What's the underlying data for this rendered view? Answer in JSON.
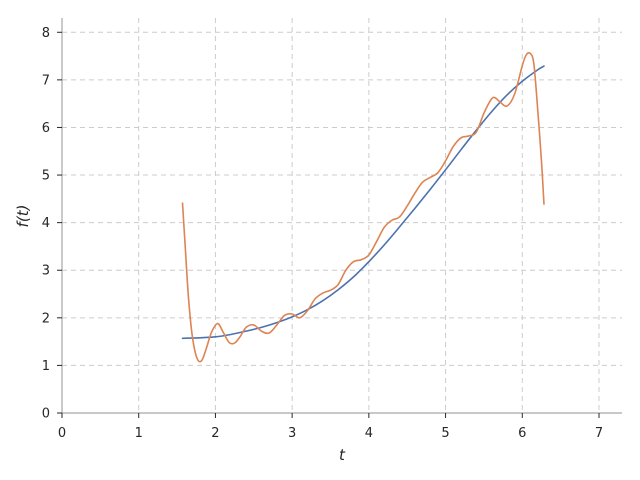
{
  "chart_data": {
    "type": "line",
    "title": "",
    "xlabel": "t",
    "ylabel": "f(t)",
    "xlim": [
      0,
      7.3
    ],
    "ylim": [
      0,
      8.3
    ],
    "x_ticks": [
      0,
      1,
      2,
      3,
      4,
      5,
      6,
      7
    ],
    "y_ticks": [
      0,
      1,
      2,
      3,
      4,
      5,
      6,
      7,
      8
    ],
    "grid": true,
    "grid_style": "dashed",
    "colors": {
      "smooth": "#4c72b0",
      "approx": "#dd8452",
      "axis": "#a6a6a6",
      "grid": "#cccccc"
    },
    "series": [
      {
        "x": [
          1.571,
          1.8,
          2.0,
          2.2,
          2.4,
          2.6,
          2.8,
          3.0,
          3.2,
          3.4,
          3.6,
          3.8,
          4.0,
          4.2,
          4.4,
          4.6,
          4.8,
          5.0,
          5.2,
          5.4,
          5.6,
          5.8,
          6.0,
          6.2,
          6.283
        ],
        "values": [
          1.57,
          1.58,
          1.6,
          1.65,
          1.72,
          1.8,
          1.9,
          2.02,
          2.17,
          2.36,
          2.59,
          2.86,
          3.18,
          3.53,
          3.91,
          4.3,
          4.7,
          5.11,
          5.53,
          5.94,
          6.33,
          6.68,
          6.97,
          7.21,
          7.29
        ]
      },
      {
        "x": [
          1.571,
          1.61,
          1.65,
          1.7,
          1.76,
          1.82,
          1.88,
          1.95,
          2.03,
          2.1,
          2.18,
          2.25,
          2.32,
          2.4,
          2.5,
          2.6,
          2.7,
          2.8,
          2.9,
          3.0,
          3.1,
          3.2,
          3.3,
          3.4,
          3.5,
          3.6,
          3.7,
          3.8,
          3.9,
          4.0,
          4.1,
          4.2,
          4.3,
          4.4,
          4.5,
          4.6,
          4.7,
          4.8,
          4.9,
          5.0,
          5.1,
          5.2,
          5.3,
          5.4,
          5.5,
          5.6,
          5.65,
          5.7,
          5.8,
          5.9,
          6.0,
          6.05,
          6.1,
          6.15,
          6.2,
          6.25,
          6.283
        ],
        "values": [
          4.41,
          3.4,
          2.4,
          1.6,
          1.15,
          1.1,
          1.35,
          1.7,
          1.88,
          1.7,
          1.48,
          1.47,
          1.6,
          1.8,
          1.85,
          1.72,
          1.68,
          1.85,
          2.05,
          2.08,
          2.0,
          2.15,
          2.4,
          2.52,
          2.58,
          2.7,
          3.0,
          3.18,
          3.22,
          3.32,
          3.6,
          3.9,
          4.05,
          4.12,
          4.35,
          4.62,
          4.85,
          4.95,
          5.05,
          5.3,
          5.6,
          5.78,
          5.82,
          5.9,
          6.3,
          6.6,
          6.62,
          6.55,
          6.45,
          6.7,
          7.3,
          7.52,
          7.56,
          7.35,
          6.4,
          5.3,
          4.39
        ]
      }
    ]
  }
}
